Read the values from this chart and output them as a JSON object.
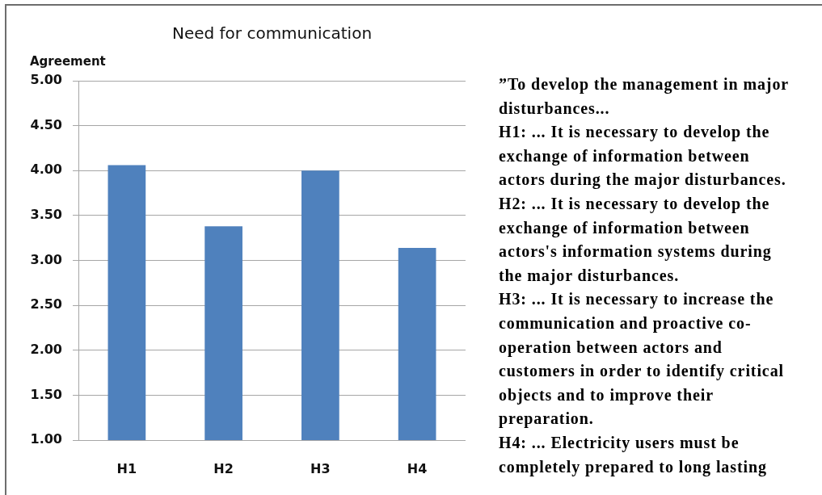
{
  "chart_data": {
    "type": "bar",
    "title": "Need for communication",
    "ylabel": "Agreement",
    "categories": [
      "H1",
      "H2",
      "H3",
      "H4"
    ],
    "values": [
      4.06,
      3.38,
      4.0,
      3.14
    ],
    "color": "#4f81bd",
    "ylim": [
      1,
      5
    ],
    "yticks": [
      {
        "value": 1,
        "label": "1.00"
      },
      {
        "value": 1.5,
        "label": "1.50"
      },
      {
        "value": 2,
        "label": "2.00"
      },
      {
        "value": 2.5,
        "label": "2.50"
      },
      {
        "value": 3,
        "label": "3.00"
      },
      {
        "value": 3.5,
        "label": "3.50"
      },
      {
        "value": 4,
        "label": "4.00"
      },
      {
        "value": 4.5,
        "label": "4.50"
      },
      {
        "value": 5,
        "label": "5.00"
      }
    ],
    "grid": "y",
    "annotations": [
      "”To develop the management in major disturbances...",
      "H1: ... It is necessary to develop the exchange of information between actors during the major disturbances.",
      "H2: ... It is necessary to develop the exchange of information between actors's information systems during the major disturbances.",
      "H3: ... It is necessary to increase the communication and proactive co-operation between actors and customers in order to identify critical objects and to improve their preparation.",
      "H4: ... Electricity users must be completely prepared to long lasting"
    ]
  }
}
